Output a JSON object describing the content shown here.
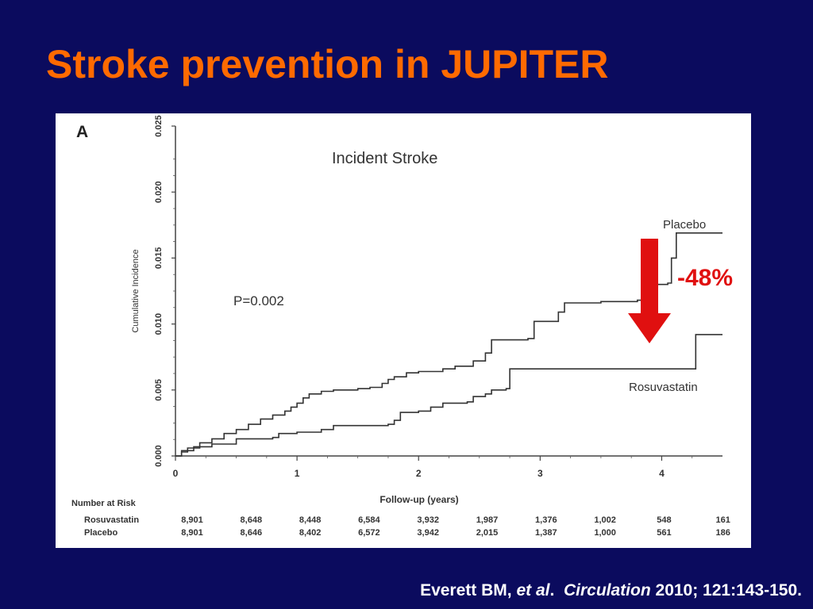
{
  "slide": {
    "title": "Stroke prevention in JUPITER",
    "citation": {
      "authors": "Everett BM,",
      "et_al": "et al",
      "dot": ".",
      "journal": "Circulation",
      "details": "2010; 121:143-150."
    },
    "annotation": {
      "text": "-48%",
      "arrow_color": "#e01010",
      "text_color": "#e01010"
    },
    "colors": {
      "background": "#0b0b5e",
      "title": "#ff6a00",
      "citation": "#ffffff"
    }
  },
  "chart_data": {
    "type": "line",
    "panel_label": "A",
    "title": "Incident Stroke",
    "xlabel": "Follow-up (years)",
    "ylabel": "Cumulative Incidence",
    "xlim": [
      0,
      4.5
    ],
    "ylim": [
      0,
      0.025
    ],
    "x_ticks": [
      0,
      1,
      2,
      3,
      4
    ],
    "x_tick_labels": [
      "0",
      "1",
      "2",
      "3",
      "4"
    ],
    "y_ticks": [
      0,
      0.005,
      0.01,
      0.015,
      0.02,
      0.025
    ],
    "y_tick_labels": [
      "0.000",
      "0.005",
      "0.010",
      "0.015",
      "0.020",
      "0.025"
    ],
    "p_value": "P=0.002",
    "step": true,
    "series": [
      {
        "name": "Placebo",
        "points": [
          [
            0,
            0
          ],
          [
            0.05,
            0.0003
          ],
          [
            0.1,
            0.0006
          ],
          [
            0.2,
            0.001
          ],
          [
            0.3,
            0.0013
          ],
          [
            0.4,
            0.0017
          ],
          [
            0.5,
            0.002
          ],
          [
            0.6,
            0.0024
          ],
          [
            0.7,
            0.0028
          ],
          [
            0.8,
            0.0031
          ],
          [
            0.9,
            0.0034
          ],
          [
            0.95,
            0.0037
          ],
          [
            1.0,
            0.004
          ],
          [
            1.05,
            0.0044
          ],
          [
            1.1,
            0.0047
          ],
          [
            1.2,
            0.0049
          ],
          [
            1.3,
            0.005
          ],
          [
            1.5,
            0.0051
          ],
          [
            1.6,
            0.0052
          ],
          [
            1.7,
            0.0055
          ],
          [
            1.75,
            0.0058
          ],
          [
            1.8,
            0.006
          ],
          [
            1.9,
            0.0063
          ],
          [
            2.0,
            0.0064
          ],
          [
            2.2,
            0.0066
          ],
          [
            2.3,
            0.0068
          ],
          [
            2.45,
            0.0072
          ],
          [
            2.55,
            0.0078
          ],
          [
            2.6,
            0.0088
          ],
          [
            2.9,
            0.0089
          ],
          [
            2.95,
            0.0102
          ],
          [
            3.15,
            0.0109
          ],
          [
            3.2,
            0.0116
          ],
          [
            3.5,
            0.0117
          ],
          [
            3.8,
            0.0118
          ],
          [
            3.92,
            0.013
          ],
          [
            4.05,
            0.0131
          ],
          [
            4.08,
            0.015
          ],
          [
            4.12,
            0.0169
          ],
          [
            4.5,
            0.0169
          ]
        ]
      },
      {
        "name": "Rosuvastatin",
        "points": [
          [
            0,
            0
          ],
          [
            0.05,
            0.0004
          ],
          [
            0.15,
            0.0007
          ],
          [
            0.3,
            0.0009
          ],
          [
            0.5,
            0.0013
          ],
          [
            0.8,
            0.0014
          ],
          [
            0.85,
            0.0017
          ],
          [
            1.0,
            0.0018
          ],
          [
            1.15,
            0.0018
          ],
          [
            1.2,
            0.002
          ],
          [
            1.3,
            0.0023
          ],
          [
            1.5,
            0.0023
          ],
          [
            1.75,
            0.0024
          ],
          [
            1.8,
            0.0027
          ],
          [
            1.85,
            0.0033
          ],
          [
            2.0,
            0.0034
          ],
          [
            2.1,
            0.0037
          ],
          [
            2.2,
            0.004
          ],
          [
            2.4,
            0.0041
          ],
          [
            2.45,
            0.0045
          ],
          [
            2.55,
            0.0047
          ],
          [
            2.6,
            0.005
          ],
          [
            2.72,
            0.0051
          ],
          [
            2.75,
            0.0066
          ],
          [
            4.25,
            0.0066
          ],
          [
            4.28,
            0.0092
          ],
          [
            4.5,
            0.0092
          ]
        ]
      }
    ],
    "risk_table": {
      "header": "Number at Risk",
      "rows": [
        {
          "label": "Rosuvastatin",
          "values": [
            "8,901",
            "8,648",
            "8,448",
            "6,584",
            "3,932",
            "1,987",
            "1,376",
            "1,002",
            "548",
            "161"
          ]
        },
        {
          "label": "Placebo",
          "values": [
            "8,901",
            "8,646",
            "8,402",
            "6,572",
            "3,942",
            "2,015",
            "1,387",
            "1,000",
            "561",
            "186"
          ]
        }
      ]
    }
  }
}
